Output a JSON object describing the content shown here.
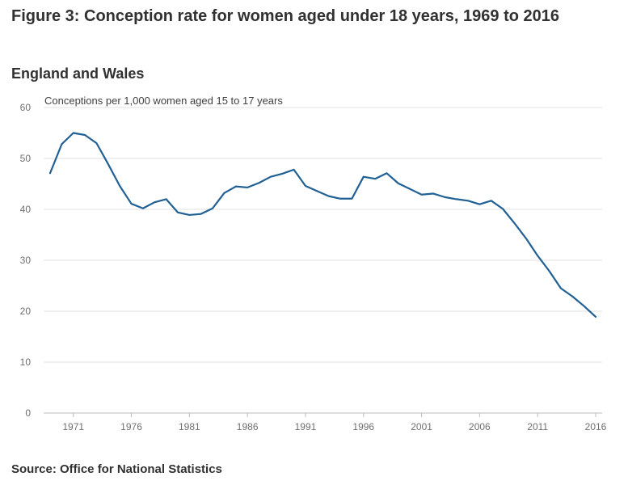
{
  "title": "Figure 3: Conception rate for women aged under 18 years, 1969 to 2016",
  "subtitle": "England and Wales",
  "source": "Source: Office for National Statistics",
  "colors": {
    "line": "#206095",
    "grid": "#e0e0e0",
    "axis": "#bcbcbc",
    "text": "#323132"
  },
  "chart_data": {
    "type": "line",
    "title": "Figure 3: Conception rate for women aged under 18 years, 1969 to 2016",
    "subtitle": "England and Wales",
    "ylabel": "Conceptions per 1,000 women aged 15 to 17 years",
    "xlabel": "",
    "ylim": [
      0,
      60
    ],
    "yticks": [
      0,
      10,
      20,
      30,
      40,
      50,
      60
    ],
    "xlim": [
      1969,
      2016
    ],
    "xticks": [
      1971,
      1976,
      1981,
      1986,
      1991,
      1996,
      2001,
      2006,
      2011,
      2016
    ],
    "grid": true,
    "legend": "none",
    "series": [
      {
        "x": [
          1969,
          1970,
          1971,
          1972,
          1973,
          1974,
          1975,
          1976,
          1977,
          1978,
          1979,
          1980,
          1981,
          1982,
          1983,
          1984,
          1985,
          1986,
          1987,
          1988,
          1989,
          1990,
          1991,
          1992,
          1993,
          1994,
          1995,
          1996,
          1997,
          1998,
          1999,
          2000,
          2001,
          2002,
          2003,
          2004,
          2005,
          2006,
          2007,
          2008,
          2009,
          2010,
          2011,
          2012,
          2013,
          2014,
          2015,
          2016
        ],
        "values": [
          47.1,
          52.8,
          55.0,
          54.6,
          53.0,
          48.9,
          44.6,
          41.1,
          40.2,
          41.4,
          42.0,
          39.4,
          38.9,
          39.1,
          40.2,
          43.2,
          44.5,
          44.3,
          45.2,
          46.4,
          47.0,
          47.8,
          44.6,
          43.6,
          42.6,
          42.1,
          42.1,
          46.4,
          46.0,
          47.1,
          45.1,
          44.0,
          42.9,
          43.1,
          42.4,
          42.0,
          41.7,
          41.0,
          41.7,
          40.1,
          37.3,
          34.3,
          30.9,
          27.9,
          24.5,
          22.9,
          21.0,
          18.9
        ]
      }
    ]
  }
}
